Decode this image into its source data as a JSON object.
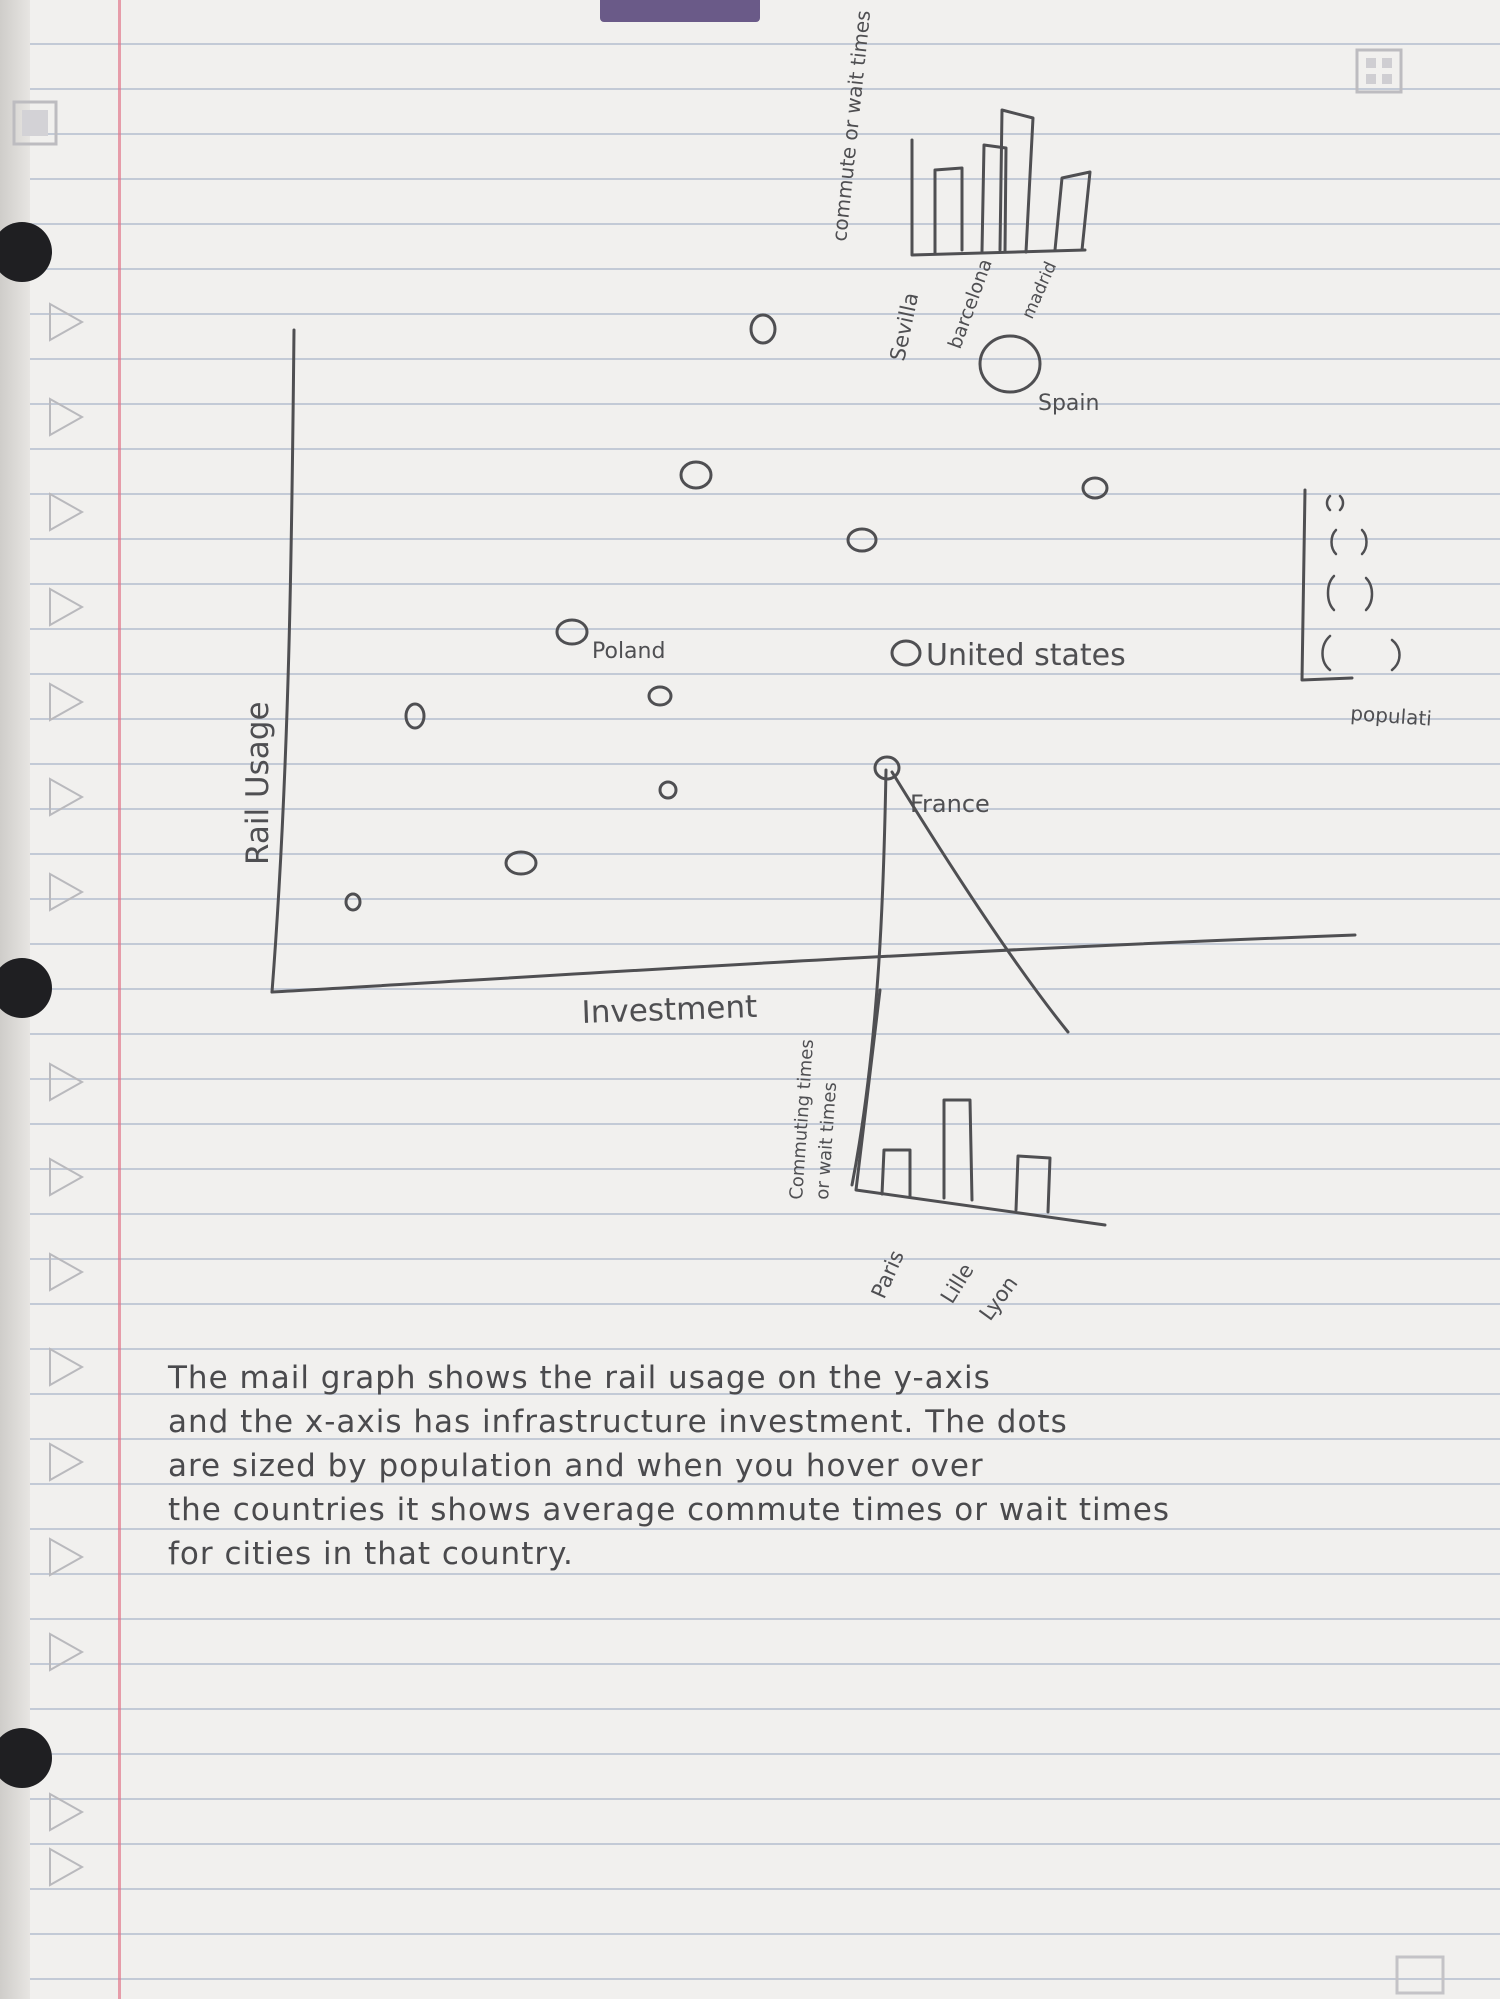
{
  "main_chart": {
    "y_axis_label": "Rail Usage",
    "x_axis_label": "Investment"
  },
  "points": [
    {
      "id": "poland",
      "label": "Poland"
    },
    {
      "id": "united-states",
      "label": "United states"
    },
    {
      "id": "france",
      "label": "France"
    },
    {
      "id": "spain",
      "label": "Spain"
    }
  ],
  "spain_inset": {
    "y_axis_label": "commute or wait times",
    "categories": [
      "Sevilla",
      "barcelona",
      "madrid"
    ]
  },
  "france_inset": {
    "y_axis_label_line1": "Commuting times",
    "y_axis_label_line2": "or wait times",
    "categories": [
      "Paris",
      "Lille",
      "Lyon"
    ]
  },
  "legend": {
    "label": "populati"
  },
  "caption": {
    "lines": [
      "The mail graph shows the rail usage on the y-axis",
      "and the x-axis has infrastructure investment. The dots",
      "are sized by population and when you hover over",
      "the countries it shows average commute times or wait times",
      "for cities in that country."
    ]
  }
}
